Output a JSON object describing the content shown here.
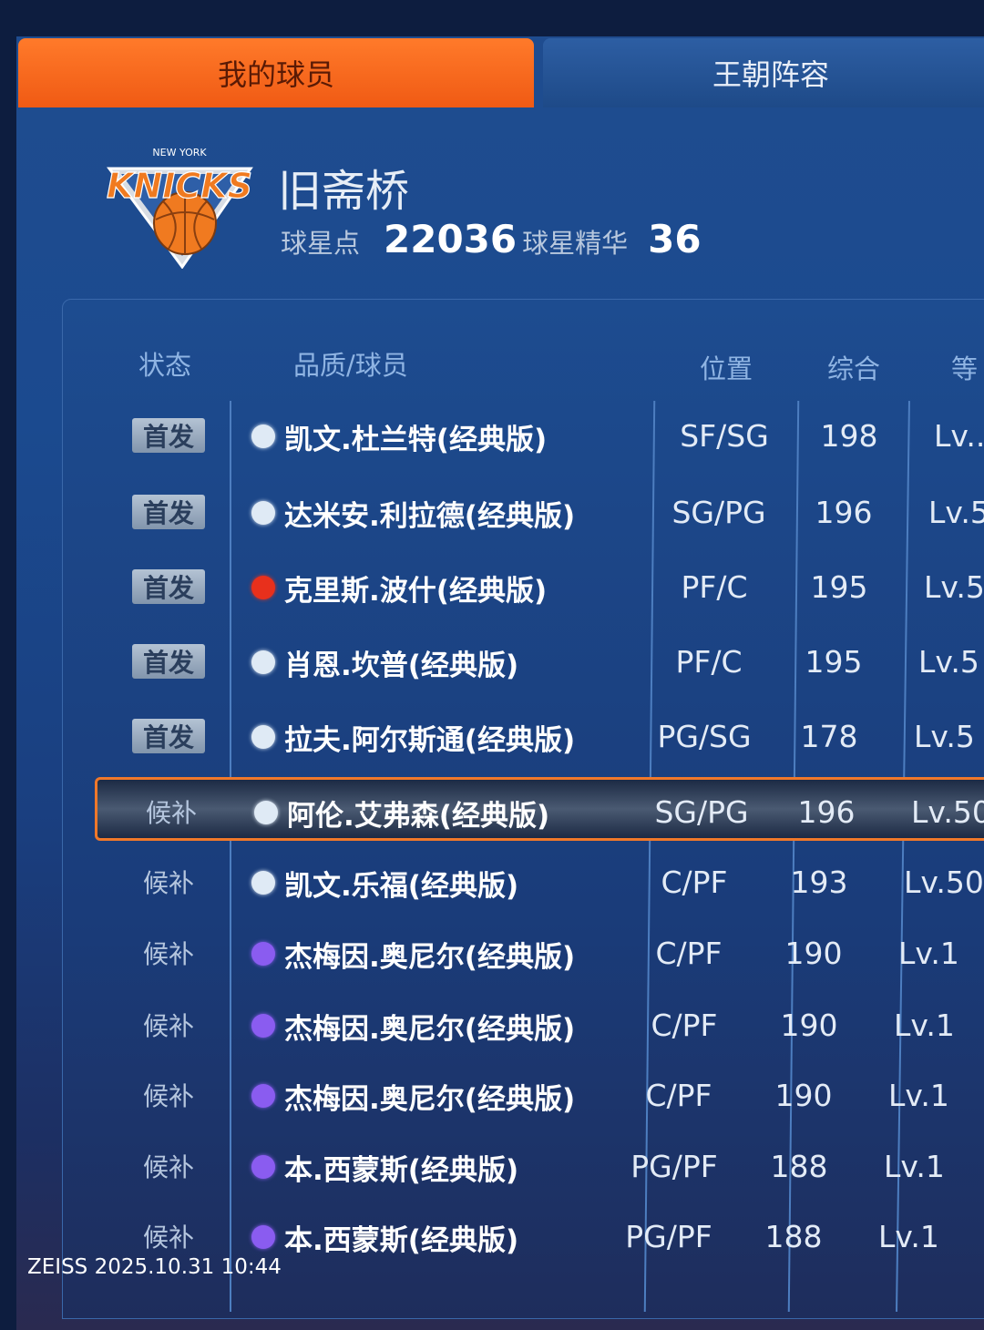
{
  "tabs": [
    {
      "label": "我的球员",
      "active": true
    },
    {
      "label": "王朝阵容",
      "active": false
    }
  ],
  "team": {
    "logo": "new-york-knicks-logo",
    "logo_text": "NEW YORK KNICKS",
    "name": "旧斋桥",
    "star_points_label": "球星点",
    "star_points": "22036",
    "star_essence_label": "球星精华",
    "star_essence": "36"
  },
  "columns": {
    "status": "状态",
    "player": "品质/球员",
    "position": "位置",
    "overall": "综合",
    "level": "等"
  },
  "colors": {
    "accent": "#f0782a",
    "quality_white": "#dfeaf5",
    "quality_red": "#e8301c",
    "quality_purple": "#8a5cf0"
  },
  "players": [
    {
      "status": "首发",
      "quality": "white",
      "name": "凯文.杜兰特(经典版)",
      "position": "SF/SG",
      "overall": "198",
      "level": "Lv.."
    },
    {
      "status": "首发",
      "quality": "white",
      "name": "达米安.利拉德(经典版)",
      "position": "SG/PG",
      "overall": "196",
      "level": "Lv.5"
    },
    {
      "status": "首发",
      "quality": "red",
      "name": "克里斯.波什(经典版)",
      "position": "PF/C",
      "overall": "195",
      "level": "Lv.5"
    },
    {
      "status": "首发",
      "quality": "white",
      "name": "肖恩.坎普(经典版)",
      "position": "PF/C",
      "overall": "195",
      "level": "Lv.5"
    },
    {
      "status": "首发",
      "quality": "white",
      "name": "拉夫.阿尔斯通(经典版)",
      "position": "PG/SG",
      "overall": "178",
      "level": "Lv.5"
    },
    {
      "status": "候补",
      "quality": "white",
      "name": "阿伦.艾弗森(经典版)",
      "position": "SG/PG",
      "overall": "196",
      "level": "Lv.50",
      "selected": true
    },
    {
      "status": "候补",
      "quality": "white",
      "name": "凯文.乐福(经典版)",
      "position": "C/PF",
      "overall": "193",
      "level": "Lv.50"
    },
    {
      "status": "候补",
      "quality": "purple",
      "name": "杰梅因.奥尼尔(经典版)",
      "position": "C/PF",
      "overall": "190",
      "level": "Lv.1"
    },
    {
      "status": "候补",
      "quality": "purple",
      "name": "杰梅因.奥尼尔(经典版)",
      "position": "C/PF",
      "overall": "190",
      "level": "Lv.1"
    },
    {
      "status": "候补",
      "quality": "purple",
      "name": "杰梅因.奥尼尔(经典版)",
      "position": "C/PF",
      "overall": "190",
      "level": "Lv.1"
    },
    {
      "status": "候补",
      "quality": "purple",
      "name": "本.西蒙斯(经典版)",
      "position": "PG/PF",
      "overall": "188",
      "level": "Lv.1"
    },
    {
      "status": "候补",
      "quality": "purple",
      "name": "本.西蒙斯(经典版)",
      "position": "PG/PF",
      "overall": "188",
      "level": "Lv.1"
    }
  ],
  "watermark": "ZEISS  2025.10.31 10:44"
}
